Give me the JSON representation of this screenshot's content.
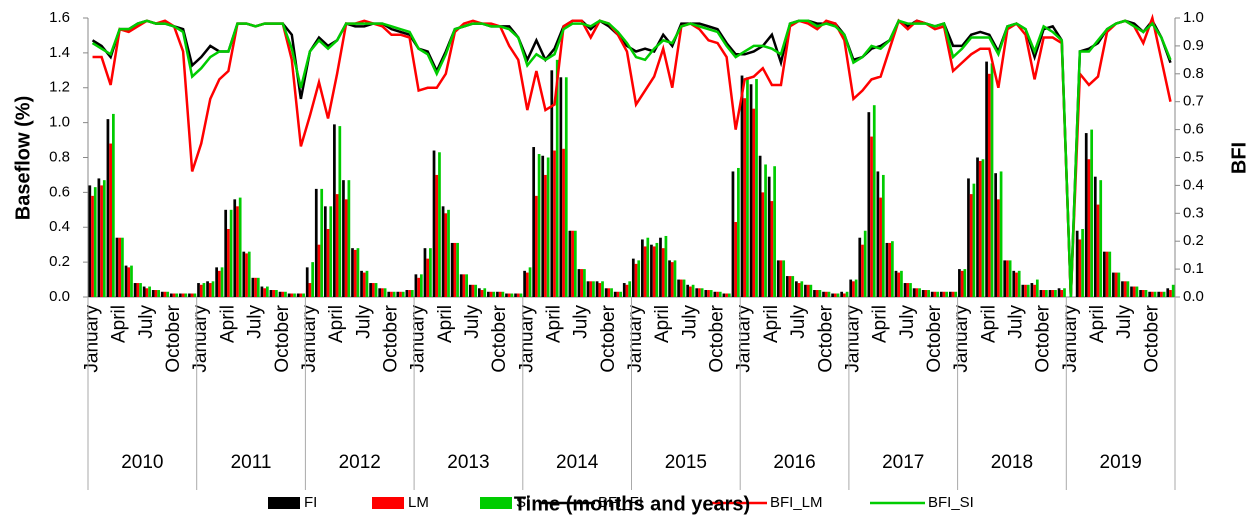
{
  "chart_data": {
    "type": "bar",
    "x_title": "Time (months and years)",
    "y_title": "Baseflow (%)",
    "y2_title": "BFI",
    "legend": "bottom",
    "categories": [
      "January",
      null,
      null,
      "April",
      null,
      null,
      "July",
      null,
      null,
      "October",
      null,
      null,
      "January",
      null,
      null,
      "April",
      null,
      null,
      "July",
      null,
      null,
      "October",
      null,
      null,
      "January",
      null,
      null,
      "April",
      null,
      null,
      "July",
      null,
      null,
      "October",
      null,
      null,
      "January",
      null,
      null,
      "April",
      null,
      null,
      "July",
      null,
      null,
      "October",
      null,
      null,
      "January",
      null,
      null,
      "April",
      null,
      null,
      "July",
      null,
      null,
      "October",
      null,
      null,
      "January",
      null,
      null,
      "April",
      null,
      null,
      "July",
      null,
      null,
      "October",
      null,
      null,
      "January",
      null,
      null,
      "April",
      null,
      null,
      "July",
      null,
      null,
      "October",
      null,
      null,
      "January",
      null,
      null,
      "April",
      null,
      null,
      "July",
      null,
      null,
      "October",
      null,
      null,
      "January",
      null,
      null,
      "April",
      null,
      null,
      "July",
      null,
      null,
      "October",
      null,
      null,
      "January",
      null,
      null,
      "April",
      null,
      null,
      "July",
      null,
      null,
      "October",
      null,
      null
    ],
    "groups": [
      "2010",
      "2011",
      "2012",
      "2013",
      "2014",
      "2015",
      "2016",
      "2017",
      "2018",
      "2019"
    ],
    "ylim": [
      0,
      1.6
    ],
    "yticks": [
      {
        "value": 0,
        "label": "0.0"
      },
      0.2,
      0.4,
      0.6,
      0.8,
      {
        "value": 1,
        "label": "1.0"
      },
      1.2,
      1.4,
      1.6
    ],
    "y2lim": [
      0,
      1
    ],
    "y2ticks": [
      {
        "value": 0,
        "label": "0.0"
      },
      0.1,
      0.2,
      0.3,
      0.4,
      0.5,
      0.6,
      0.7,
      0.8,
      0.9,
      {
        "value": 1,
        "label": "1.0"
      }
    ],
    "series": [
      {
        "name": "FI",
        "type": "bar",
        "color": "#000000",
        "values": [
          0.64,
          0.68,
          1.02,
          0.34,
          0.18,
          0.08,
          0.06,
          0.04,
          0.03,
          0.02,
          0.02,
          0.02,
          0.08,
          0.09,
          0.17,
          0.5,
          0.56,
          0.26,
          0.11,
          0.06,
          0.04,
          0.03,
          0.02,
          0.02,
          0.17,
          0.62,
          0.52,
          0.99,
          0.67,
          0.28,
          0.15,
          0.08,
          0.05,
          0.03,
          0.03,
          0.04,
          0.13,
          0.28,
          0.84,
          0.52,
          0.31,
          0.13,
          0.07,
          0.05,
          0.03,
          0.03,
          0.02,
          0.02,
          0.15,
          0.86,
          0.81,
          1.3,
          1.26,
          0.38,
          0.16,
          0.09,
          0.09,
          0.05,
          0.03,
          0.08,
          0.22,
          0.33,
          0.3,
          0.34,
          0.21,
          0.1,
          0.07,
          0.05,
          0.04,
          0.03,
          0.02,
          0.72,
          1.27,
          1.22,
          0.81,
          0.69,
          0.21,
          0.12,
          0.09,
          0.07,
          0.04,
          0.03,
          0.02,
          0.03,
          0.1,
          0.34,
          1.06,
          0.72,
          0.31,
          0.15,
          0.08,
          0.05,
          0.04,
          0.03,
          0.03,
          0.03,
          0.16,
          0.68,
          0.8,
          1.35,
          0.71,
          0.21,
          0.15,
          0.07,
          0.08,
          0.04,
          0.04,
          0.05,
          0,
          0.38,
          0.94,
          0.69,
          0.26,
          0.14,
          0.09,
          0.06,
          0.04,
          0.03,
          0.03,
          0.05
        ]
      },
      {
        "name": "LM",
        "type": "bar",
        "color": "#ff0000",
        "values": [
          0.58,
          0.64,
          0.88,
          0.34,
          0.17,
          0.08,
          0.05,
          0.04,
          0.03,
          0.02,
          0.02,
          0.02,
          0.07,
          0.08,
          0.15,
          0.39,
          0.52,
          0.25,
          0.11,
          0.05,
          0.04,
          0.03,
          0.02,
          0.02,
          0.08,
          0.3,
          0.39,
          0.59,
          0.56,
          0.27,
          0.14,
          0.08,
          0.05,
          0.03,
          0.03,
          0.04,
          0.11,
          0.22,
          0.7,
          0.48,
          0.31,
          0.13,
          0.07,
          0.04,
          0.03,
          0.03,
          0.02,
          0.02,
          0.14,
          0.58,
          0.7,
          0.84,
          0.85,
          0.38,
          0.16,
          0.09,
          0.08,
          0.05,
          0.03,
          0.07,
          0.19,
          0.29,
          0.29,
          0.28,
          0.2,
          0.1,
          0.06,
          0.05,
          0.04,
          0.03,
          0.02,
          0.43,
          1.14,
          1.08,
          0.6,
          0.55,
          0.21,
          0.12,
          0.08,
          0.07,
          0.04,
          0.03,
          0.02,
          0.02,
          0.09,
          0.3,
          0.92,
          0.57,
          0.31,
          0.14,
          0.08,
          0.05,
          0.04,
          0.03,
          0.03,
          0.03,
          0.15,
          0.59,
          0.78,
          1.28,
          0.56,
          0.21,
          0.14,
          0.07,
          0.07,
          0.04,
          0.04,
          0.04,
          0,
          0.33,
          0.79,
          0.53,
          0.26,
          0.14,
          0.09,
          0.06,
          0.04,
          0.03,
          0.03,
          0.04
        ]
      },
      {
        "name": "SI",
        "type": "bar",
        "color": "#00cc00",
        "values": [
          0.63,
          0.67,
          1.05,
          0.34,
          0.18,
          0.08,
          0.06,
          0.04,
          0.03,
          0.02,
          0.02,
          0.02,
          0.08,
          0.09,
          0.17,
          0.5,
          0.57,
          0.26,
          0.11,
          0.06,
          0.04,
          0.03,
          0.02,
          0.02,
          0.2,
          0.62,
          0.52,
          0.98,
          0.67,
          0.28,
          0.15,
          0.08,
          0.05,
          0.03,
          0.03,
          0.04,
          0.13,
          0.28,
          0.83,
          0.5,
          0.31,
          0.13,
          0.07,
          0.05,
          0.03,
          0.03,
          0.02,
          0.02,
          0.17,
          0.82,
          0.8,
          1.36,
          1.26,
          0.38,
          0.16,
          0.09,
          0.09,
          0.05,
          0.03,
          0.09,
          0.21,
          0.34,
          0.31,
          0.35,
          0.21,
          0.1,
          0.07,
          0.05,
          0.04,
          0.03,
          0.02,
          0.74,
          1.26,
          1.25,
          0.76,
          0.75,
          0.21,
          0.12,
          0.09,
          0.07,
          0.04,
          0.03,
          0.02,
          0.03,
          0.1,
          0.38,
          1.1,
          0.7,
          0.32,
          0.15,
          0.08,
          0.05,
          0.04,
          0.03,
          0.03,
          0.03,
          0.16,
          0.65,
          0.79,
          1.34,
          0.72,
          0.21,
          0.15,
          0.07,
          0.1,
          0.04,
          0.04,
          0.05,
          0,
          0.39,
          0.96,
          0.67,
          0.26,
          0.14,
          0.09,
          0.06,
          0.04,
          0.03,
          0.03,
          0.07
        ]
      },
      {
        "name": "BFI_FI",
        "type": "line",
        "axis": "y2",
        "color": "#000000",
        "values": [
          0.92,
          0.9,
          0.86,
          0.96,
          0.96,
          0.98,
          0.99,
          0.98,
          0.98,
          0.97,
          0.96,
          0.83,
          0.86,
          0.9,
          0.88,
          0.88,
          0.98,
          0.98,
          0.97,
          0.98,
          0.98,
          0.98,
          0.94,
          0.71,
          0.88,
          0.93,
          0.9,
          0.92,
          0.98,
          0.97,
          0.97,
          0.98,
          0.98,
          0.96,
          0.95,
          0.94,
          0.89,
          0.88,
          0.81,
          0.88,
          0.96,
          0.97,
          0.98,
          0.98,
          0.97,
          0.97,
          0.97,
          0.93,
          0.85,
          0.92,
          0.85,
          0.89,
          0.97,
          0.99,
          0.99,
          0.96,
          0.99,
          0.97,
          0.94,
          0.9,
          0.88,
          0.89,
          0.88,
          0.94,
          0.9,
          0.98,
          0.98,
          0.98,
          0.97,
          0.96,
          0.91,
          0.87,
          0.87,
          0.88,
          0.9,
          0.94,
          0.84,
          0.98,
          0.99,
          0.99,
          0.98,
          0.98,
          0.98,
          0.94,
          0.85,
          0.86,
          0.89,
          0.9,
          0.92,
          0.99,
          0.97,
          0.99,
          0.98,
          0.97,
          0.98,
          0.9,
          0.9,
          0.94,
          0.95,
          0.94,
          0.88,
          0.97,
          0.98,
          0.96,
          0.86,
          0.96,
          0.97,
          0.92,
          0,
          0.88,
          0.89,
          0.91,
          0.96,
          0.98,
          0.99,
          0.98,
          0.95,
          0.99,
          0.93,
          0.84
        ]
      },
      {
        "name": "BFI_LM",
        "type": "line",
        "axis": "y2",
        "color": "#ff0000",
        "values": [
          0.86,
          0.86,
          0.76,
          0.96,
          0.95,
          0.97,
          0.99,
          0.98,
          0.99,
          0.97,
          0.88,
          0.45,
          0.55,
          0.71,
          0.78,
          0.81,
          0.98,
          0.98,
          0.97,
          0.98,
          0.98,
          0.98,
          0.85,
          0.54,
          0.65,
          0.77,
          0.64,
          0.8,
          0.98,
          0.98,
          0.99,
          0.98,
          0.97,
          0.94,
          0.94,
          0.93,
          0.74,
          0.75,
          0.75,
          0.8,
          0.95,
          0.98,
          0.99,
          0.98,
          0.98,
          0.97,
          0.9,
          0.85,
          0.67,
          0.81,
          0.67,
          0.69,
          0.97,
          0.99,
          0.99,
          0.93,
          0.99,
          0.98,
          0.94,
          0.88,
          0.69,
          0.74,
          0.79,
          0.89,
          0.75,
          0.97,
          0.98,
          0.96,
          0.92,
          0.91,
          0.86,
          0.6,
          0.78,
          0.79,
          0.82,
          0.76,
          0.76,
          0.97,
          0.99,
          0.98,
          0.96,
          0.99,
          0.98,
          0.92,
          0.71,
          0.74,
          0.78,
          0.79,
          0.89,
          0.99,
          0.96,
          0.99,
          0.98,
          0.96,
          0.97,
          0.81,
          0.84,
          0.87,
          0.89,
          0.89,
          0.75,
          0.96,
          0.98,
          0.94,
          0.78,
          0.93,
          0.93,
          0.91,
          0,
          0.8,
          0.76,
          0.79,
          0.95,
          0.98,
          0.99,
          0.97,
          0.91,
          1.0,
          0.85,
          0.7
        ]
      },
      {
        "name": "BFI_SI",
        "type": "line",
        "axis": "y2",
        "color": "#00cc00",
        "values": [
          0.91,
          0.89,
          0.87,
          0.96,
          0.96,
          0.98,
          0.99,
          0.98,
          0.98,
          0.97,
          0.95,
          0.79,
          0.82,
          0.86,
          0.88,
          0.88,
          0.98,
          0.98,
          0.97,
          0.98,
          0.98,
          0.98,
          0.89,
          0.75,
          0.88,
          0.92,
          0.89,
          0.92,
          0.98,
          0.98,
          0.98,
          0.98,
          0.98,
          0.97,
          0.96,
          0.95,
          0.89,
          0.87,
          0.8,
          0.87,
          0.96,
          0.97,
          0.98,
          0.98,
          0.97,
          0.97,
          0.96,
          0.93,
          0.83,
          0.87,
          0.85,
          0.87,
          0.96,
          0.98,
          0.98,
          0.97,
          0.99,
          0.98,
          0.95,
          0.91,
          0.86,
          0.85,
          0.89,
          0.92,
          0.91,
          0.97,
          0.98,
          0.97,
          0.96,
          0.95,
          0.9,
          0.86,
          0.88,
          0.9,
          0.9,
          0.89,
          0.87,
          0.98,
          0.99,
          0.99,
          0.97,
          0.98,
          0.97,
          0.94,
          0.84,
          0.86,
          0.9,
          0.89,
          0.92,
          0.99,
          0.98,
          0.98,
          0.98,
          0.97,
          0.98,
          0.86,
          0.89,
          0.93,
          0.93,
          0.93,
          0.87,
          0.97,
          0.98,
          0.96,
          0.88,
          0.97,
          0.95,
          0.92,
          0,
          0.88,
          0.88,
          0.92,
          0.96,
          0.98,
          0.99,
          0.97,
          0.95,
          0.98,
          0.93,
          0.85
        ]
      }
    ]
  }
}
